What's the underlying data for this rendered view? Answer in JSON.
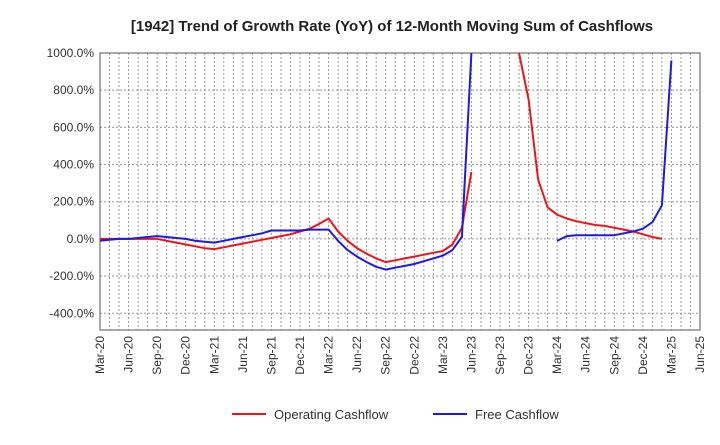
{
  "chart_data": {
    "type": "line",
    "title": "[1942]  Trend of Growth Rate (YoY) of 12-Month Moving Sum of Cashflows",
    "xlabel": "",
    "ylabel": "",
    "ylim": [
      -490,
      1000
    ],
    "y_ticks": [
      -400,
      -200,
      0,
      200,
      400,
      600,
      800,
      1000
    ],
    "y_tick_labels": [
      "-400.0%",
      "-200.0%",
      "0.0%",
      "200.0%",
      "400.0%",
      "600.0%",
      "800.0%",
      "1000.0%"
    ],
    "x_tick_labels": [
      "Mar-20",
      "Jun-20",
      "Sep-20",
      "Dec-20",
      "Mar-21",
      "Jun-21",
      "Sep-21",
      "Dec-21",
      "Mar-22",
      "Jun-22",
      "Sep-22",
      "Dec-22",
      "Mar-23",
      "Jun-23",
      "Sep-23",
      "Dec-23",
      "Mar-24",
      "Jun-24",
      "Sep-24",
      "Dec-24",
      "Mar-25",
      "Jun-25"
    ],
    "grid": true,
    "legend_position": "bottom",
    "series": [
      {
        "name": "Operating Cashflow",
        "color": "#e8171b",
        "points": [
          [
            "Mar-20",
            0
          ],
          [
            "Apr-20",
            0
          ],
          [
            "May-20",
            0
          ],
          [
            "Jun-20",
            0
          ],
          [
            "Jul-20",
            0
          ],
          [
            "Aug-20",
            0
          ],
          [
            "Sep-20",
            0
          ],
          [
            "Oct-20",
            -10
          ],
          [
            "Nov-20",
            -20
          ],
          [
            "Dec-20",
            -30
          ],
          [
            "Jan-21",
            -40
          ],
          [
            "Feb-21",
            -50
          ],
          [
            "Mar-21",
            -55
          ],
          [
            "Apr-21",
            -45
          ],
          [
            "May-21",
            -35
          ],
          [
            "Jun-21",
            -25
          ],
          [
            "Jul-21",
            -15
          ],
          [
            "Aug-21",
            -5
          ],
          [
            "Sep-21",
            5
          ],
          [
            "Oct-21",
            15
          ],
          [
            "Nov-21",
            25
          ],
          [
            "Dec-21",
            40
          ],
          [
            "Jan-22",
            55
          ],
          [
            "Feb-22",
            80
          ],
          [
            "Mar-22",
            110
          ],
          [
            "Apr-22",
            40
          ],
          [
            "May-22",
            -10
          ],
          [
            "Jun-22",
            -50
          ],
          [
            "Jul-22",
            -80
          ],
          [
            "Aug-22",
            -105
          ],
          [
            "Sep-22",
            -125
          ],
          [
            "Oct-22",
            -115
          ],
          [
            "Nov-22",
            -105
          ],
          [
            "Dec-22",
            -95
          ],
          [
            "Jan-23",
            -85
          ],
          [
            "Feb-23",
            -75
          ],
          [
            "Mar-23",
            -65
          ],
          [
            "Apr-23",
            -30
          ],
          [
            "May-23",
            60
          ],
          [
            "Jun-23",
            360
          ]
        ]
      },
      {
        "name": "Operating Cashflow (continued)",
        "color": "#e8171b",
        "points": [
          [
            "Nov-23",
            1000
          ],
          [
            "Dec-23",
            750
          ],
          [
            "Jan-24",
            320
          ],
          [
            "Feb-24",
            170
          ],
          [
            "Mar-24",
            130
          ],
          [
            "Apr-24",
            110
          ],
          [
            "May-24",
            95
          ],
          [
            "Jun-24",
            85
          ],
          [
            "Jul-24",
            75
          ],
          [
            "Aug-24",
            70
          ],
          [
            "Sep-24",
            60
          ],
          [
            "Oct-24",
            50
          ],
          [
            "Nov-24",
            40
          ],
          [
            "Dec-24",
            25
          ],
          [
            "Jan-25",
            10
          ],
          [
            "Feb-25",
            0
          ]
        ]
      },
      {
        "name": "Free Cashflow",
        "color": "#1f1ae0",
        "points": [
          [
            "Mar-20",
            -10
          ],
          [
            "Apr-20",
            -5
          ],
          [
            "May-20",
            0
          ],
          [
            "Jun-20",
            0
          ],
          [
            "Jul-20",
            5
          ],
          [
            "Aug-20",
            10
          ],
          [
            "Sep-20",
            15
          ],
          [
            "Oct-20",
            10
          ],
          [
            "Nov-20",
            5
          ],
          [
            "Dec-20",
            0
          ],
          [
            "Jan-21",
            -10
          ],
          [
            "Feb-21",
            -15
          ],
          [
            "Mar-21",
            -20
          ],
          [
            "Apr-21",
            -10
          ],
          [
            "May-21",
            0
          ],
          [
            "Jun-21",
            10
          ],
          [
            "Jul-21",
            20
          ],
          [
            "Aug-21",
            30
          ],
          [
            "Sep-21",
            45
          ],
          [
            "Oct-21",
            45
          ],
          [
            "Nov-21",
            45
          ],
          [
            "Dec-21",
            45
          ],
          [
            "Jan-22",
            50
          ],
          [
            "Feb-22",
            50
          ],
          [
            "Mar-22",
            50
          ],
          [
            "Apr-22",
            -10
          ],
          [
            "May-22",
            -60
          ],
          [
            "Jun-22",
            -95
          ],
          [
            "Jul-22",
            -125
          ],
          [
            "Aug-22",
            -150
          ],
          [
            "Sep-22",
            -165
          ],
          [
            "Oct-22",
            -155
          ],
          [
            "Nov-22",
            -145
          ],
          [
            "Dec-22",
            -135
          ],
          [
            "Jan-23",
            -120
          ],
          [
            "Feb-23",
            -105
          ],
          [
            "Mar-23",
            -90
          ],
          [
            "Apr-23",
            -60
          ],
          [
            "May-23",
            10
          ],
          [
            "Jun-23",
            1000
          ]
        ]
      },
      {
        "name": "Free Cashflow (continued)",
        "color": "#1f1ae0",
        "points": [
          [
            "Mar-24",
            -10
          ],
          [
            "Apr-24",
            15
          ],
          [
            "May-24",
            20
          ],
          [
            "Jun-24",
            20
          ],
          [
            "Jul-24",
            20
          ],
          [
            "Aug-24",
            20
          ],
          [
            "Sep-24",
            20
          ],
          [
            "Oct-24",
            30
          ],
          [
            "Nov-24",
            40
          ],
          [
            "Dec-24",
            55
          ],
          [
            "Jan-25",
            90
          ],
          [
            "Feb-25",
            180
          ],
          [
            "Mar-25",
            960
          ]
        ]
      }
    ],
    "legend": [
      {
        "label": "Operating Cashflow",
        "color": "#e8171b"
      },
      {
        "label": "Free Cashflow",
        "color": "#1f1ae0"
      }
    ]
  }
}
